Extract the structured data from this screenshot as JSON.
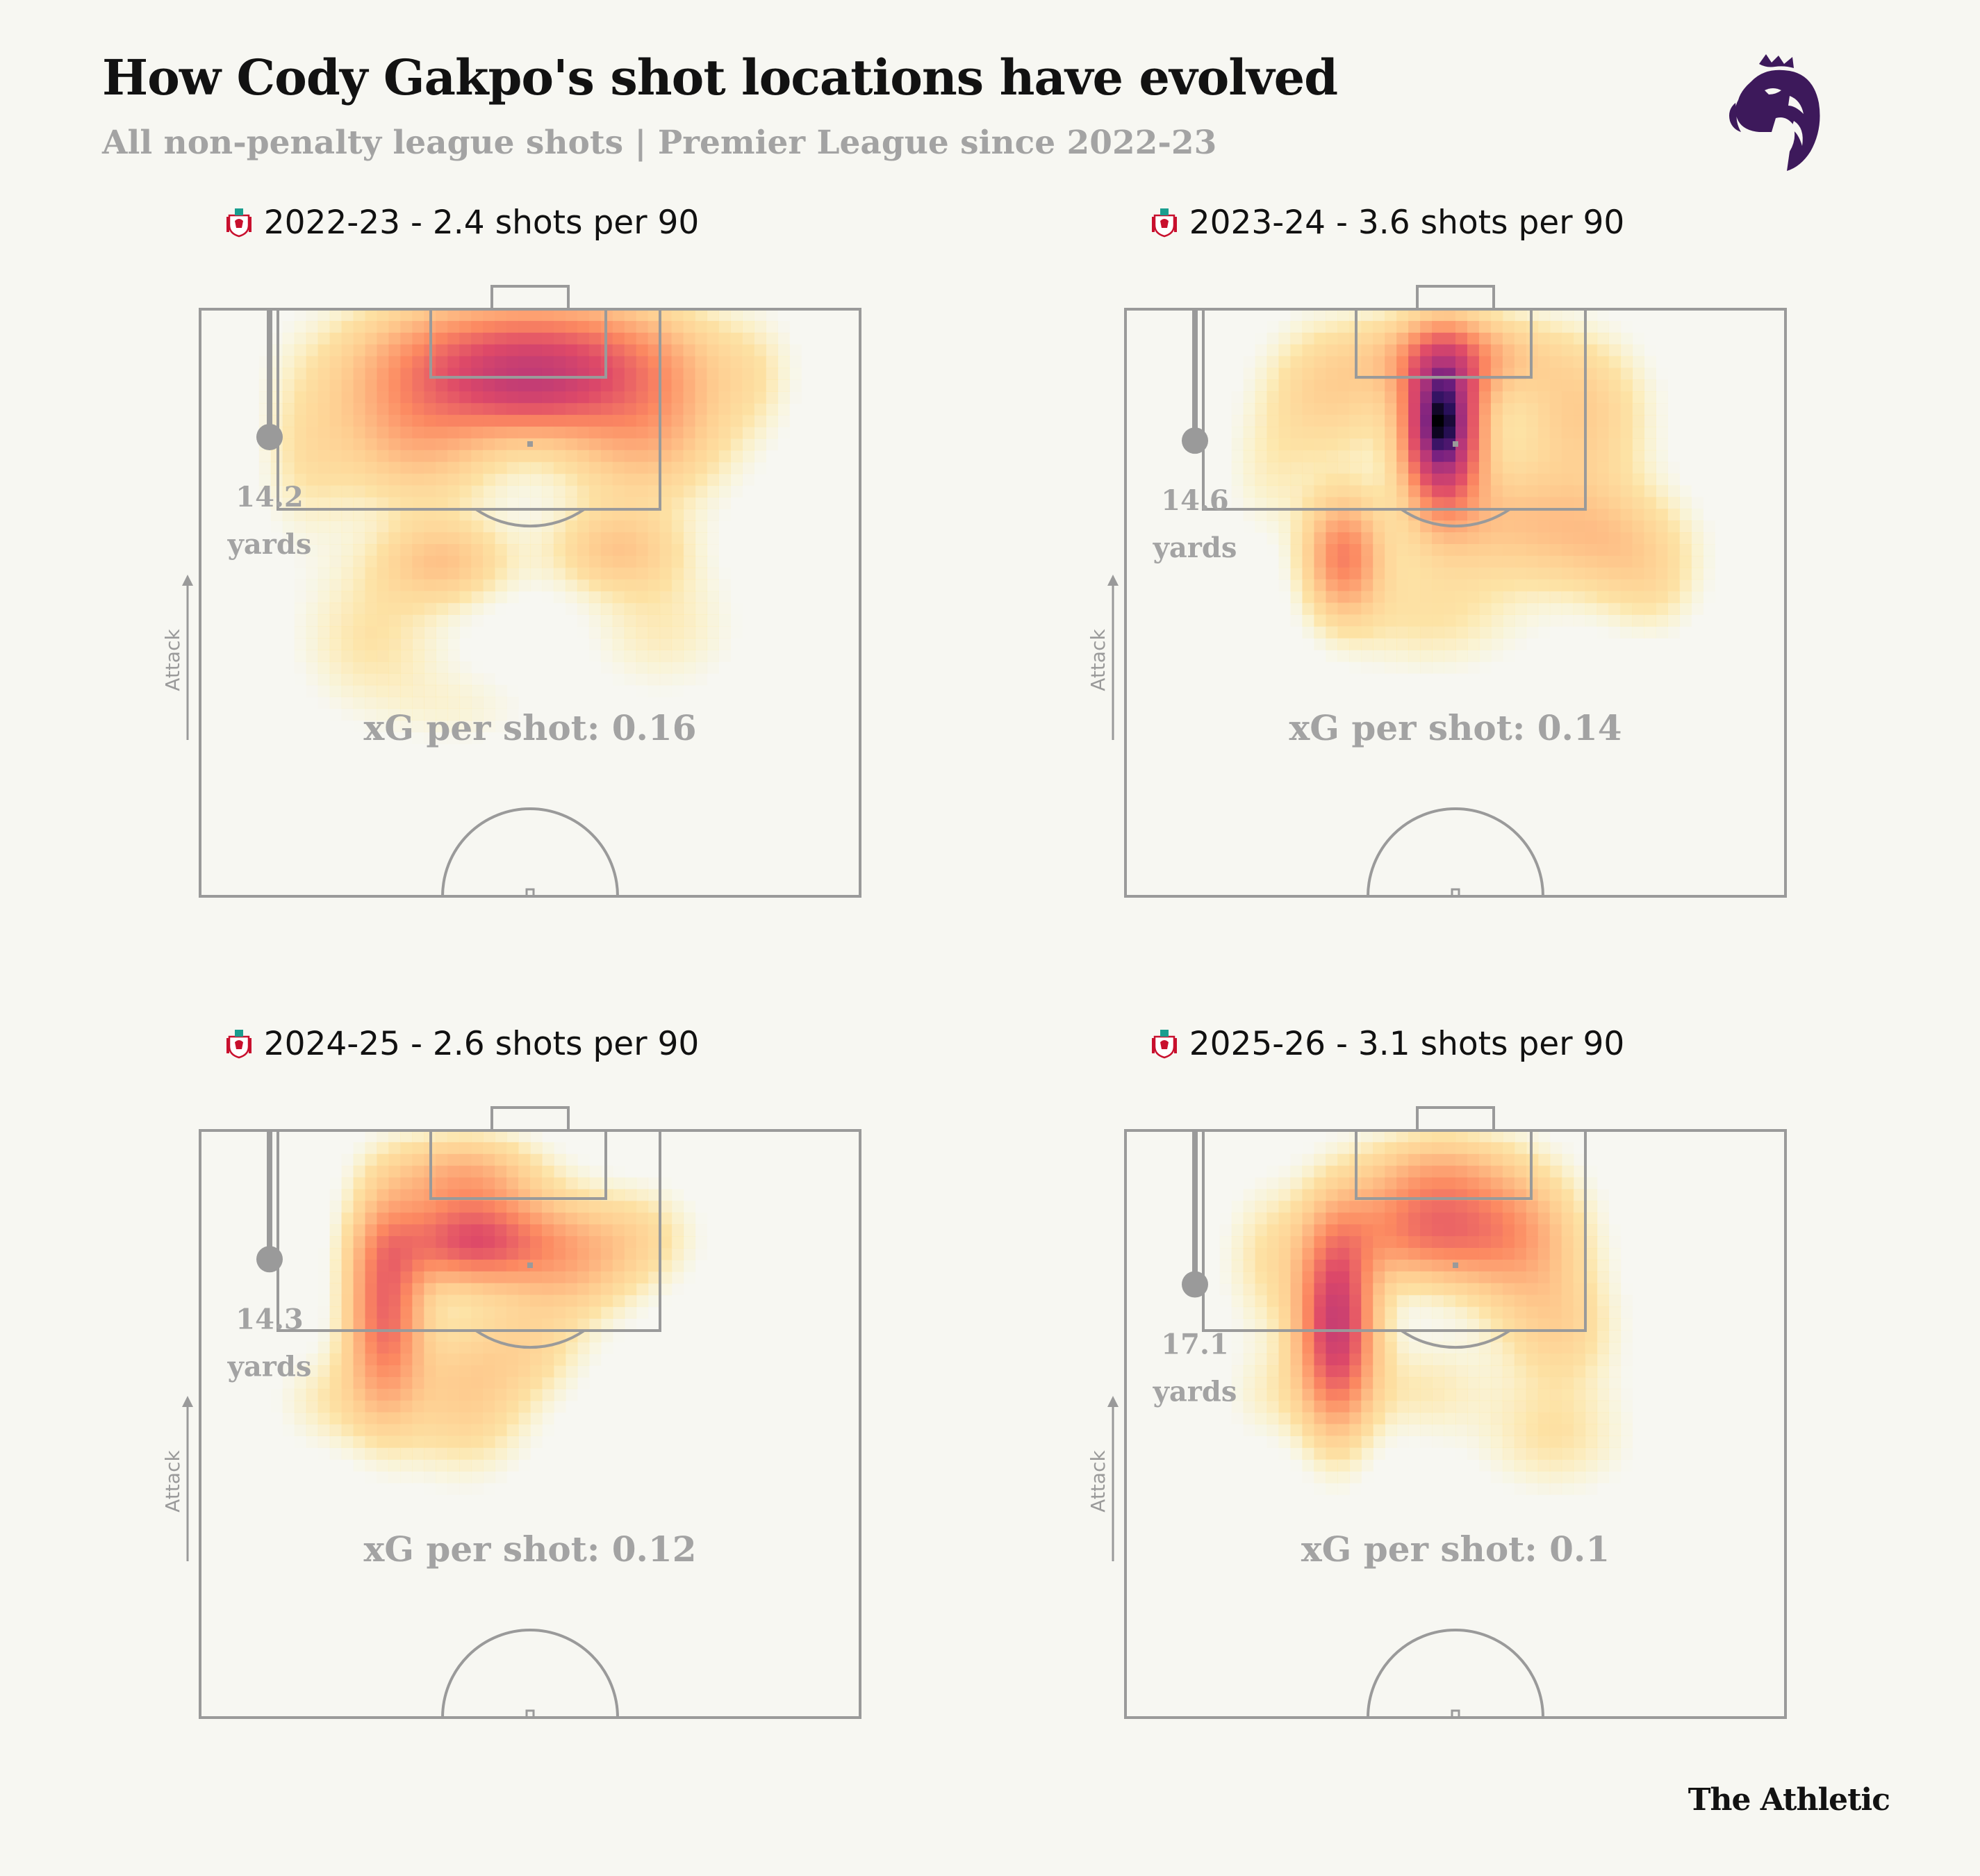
{
  "title": "How Cody Gakpo's shot locations have evolved",
  "subtitle": "All non-penalty league shots | Premier League since 2022-23",
  "credit": "The Athletic",
  "labels": {
    "attack": "Attack",
    "yards": "yards"
  },
  "colors": {
    "background": "#f7f7f2",
    "pitch_lines": "#999999",
    "text_gray": "#a3a3a3",
    "pl_purple": "#3d195b",
    "heat_low": "#fcfdbf",
    "heat_mid": "#fb8861",
    "heat_high": "#b73779",
    "heat_max": "#000004"
  },
  "chart_data": [
    {
      "type": "heatmap",
      "season": "2022-23",
      "title": "2022-23 - 2.4 shots per 90",
      "shots_per_90": 2.4,
      "avg_distance": "14.2",
      "xg_label": "xG per shot: 0.16",
      "xg_per_shot": 0.16,
      "density": [
        {
          "x": 50,
          "y": 8,
          "sx": 16,
          "sy": 7,
          "w": 0.55
        },
        {
          "x": 50,
          "y": 15,
          "sx": 8,
          "sy": 5,
          "w": 0.25
        },
        {
          "x": 33,
          "y": 20,
          "sx": 9,
          "sy": 9,
          "w": 0.3
        },
        {
          "x": 67,
          "y": 20,
          "sx": 9,
          "sy": 9,
          "w": 0.3
        },
        {
          "x": 37,
          "y": 43,
          "sx": 7,
          "sy": 5,
          "w": 0.22
        },
        {
          "x": 63,
          "y": 41,
          "sx": 7,
          "sy": 5,
          "w": 0.2
        },
        {
          "x": 26,
          "y": 56,
          "sx": 8,
          "sy": 9,
          "w": 0.12
        },
        {
          "x": 70,
          "y": 54,
          "sx": 8,
          "sy": 8,
          "w": 0.1
        },
        {
          "x": 16,
          "y": 25,
          "sx": 5,
          "sy": 10,
          "w": 0.1
        },
        {
          "x": 84,
          "y": 12,
          "sx": 4,
          "sy": 7,
          "w": 0.06
        },
        {
          "x": 40,
          "y": 68,
          "sx": 8,
          "sy": 5,
          "w": 0.06
        }
      ]
    },
    {
      "type": "heatmap",
      "season": "2023-24",
      "title": "2023-24 - 3.6 shots per 90",
      "shots_per_90": 3.6,
      "avg_distance": "14.6",
      "xg_label": "xG per shot: 0.14",
      "xg_per_shot": 0.14,
      "density": [
        {
          "x": 48,
          "y": 20,
          "sx": 4,
          "sy": 9,
          "w": 1.1
        },
        {
          "x": 50,
          "y": 8,
          "sx": 9,
          "sy": 5,
          "w": 0.35
        },
        {
          "x": 33,
          "y": 42,
          "sx": 4,
          "sy": 7,
          "w": 0.45
        },
        {
          "x": 31,
          "y": 14,
          "sx": 7,
          "sy": 8,
          "w": 0.2
        },
        {
          "x": 69,
          "y": 18,
          "sx": 7,
          "sy": 9,
          "w": 0.22
        },
        {
          "x": 57,
          "y": 36,
          "sx": 10,
          "sy": 7,
          "w": 0.22
        },
        {
          "x": 74,
          "y": 40,
          "sx": 8,
          "sy": 7,
          "w": 0.2
        },
        {
          "x": 46,
          "y": 52,
          "sx": 10,
          "sy": 7,
          "w": 0.12
        },
        {
          "x": 22,
          "y": 28,
          "sx": 5,
          "sy": 8,
          "w": 0.08
        },
        {
          "x": 80,
          "y": 48,
          "sx": 5,
          "sy": 6,
          "w": 0.08
        }
      ]
    },
    {
      "type": "heatmap",
      "season": "2024-25",
      "title": "2024-25 - 2.6 shots per 90",
      "shots_per_90": 2.6,
      "avg_distance": "14.3",
      "xg_label": "xG per shot: 0.12",
      "xg_per_shot": 0.12,
      "density": [
        {
          "x": 41,
          "y": 19,
          "sx": 8,
          "sy": 5,
          "w": 0.55
        },
        {
          "x": 28,
          "y": 30,
          "sx": 4,
          "sy": 12,
          "w": 0.5
        },
        {
          "x": 40,
          "y": 8,
          "sx": 8,
          "sy": 5,
          "w": 0.3
        },
        {
          "x": 56,
          "y": 22,
          "sx": 7,
          "sy": 7,
          "w": 0.25
        },
        {
          "x": 67,
          "y": 18,
          "sx": 6,
          "sy": 6,
          "w": 0.12
        },
        {
          "x": 40,
          "y": 45,
          "sx": 7,
          "sy": 9,
          "w": 0.2
        },
        {
          "x": 50,
          "y": 37,
          "sx": 6,
          "sy": 6,
          "w": 0.12
        },
        {
          "x": 20,
          "y": 46,
          "sx": 6,
          "sy": 6,
          "w": 0.1
        }
      ]
    },
    {
      "type": "heatmap",
      "season": "2025-26",
      "title": "2025-26 - 3.1 shots per 90",
      "shots_per_90": 3.1,
      "avg_distance": "17.1",
      "xg_label": "xG per shot: 0.1",
      "xg_per_shot": 0.1,
      "density": [
        {
          "x": 32,
          "y": 33,
          "sx": 4,
          "sy": 12,
          "w": 0.7
        },
        {
          "x": 46,
          "y": 17,
          "sx": 9,
          "sy": 6,
          "w": 0.45
        },
        {
          "x": 47,
          "y": 7,
          "sx": 8,
          "sy": 5,
          "w": 0.22
        },
        {
          "x": 60,
          "y": 19,
          "sx": 7,
          "sy": 9,
          "w": 0.25
        },
        {
          "x": 66,
          "y": 34,
          "sx": 6,
          "sy": 7,
          "w": 0.15
        },
        {
          "x": 22,
          "y": 22,
          "sx": 5,
          "sy": 9,
          "w": 0.12
        },
        {
          "x": 65,
          "y": 52,
          "sx": 8,
          "sy": 7,
          "w": 0.12
        },
        {
          "x": 45,
          "y": 44,
          "sx": 7,
          "sy": 6,
          "w": 0.1
        },
        {
          "x": 22,
          "y": 45,
          "sx": 5,
          "sy": 6,
          "w": 0.08
        }
      ]
    }
  ]
}
